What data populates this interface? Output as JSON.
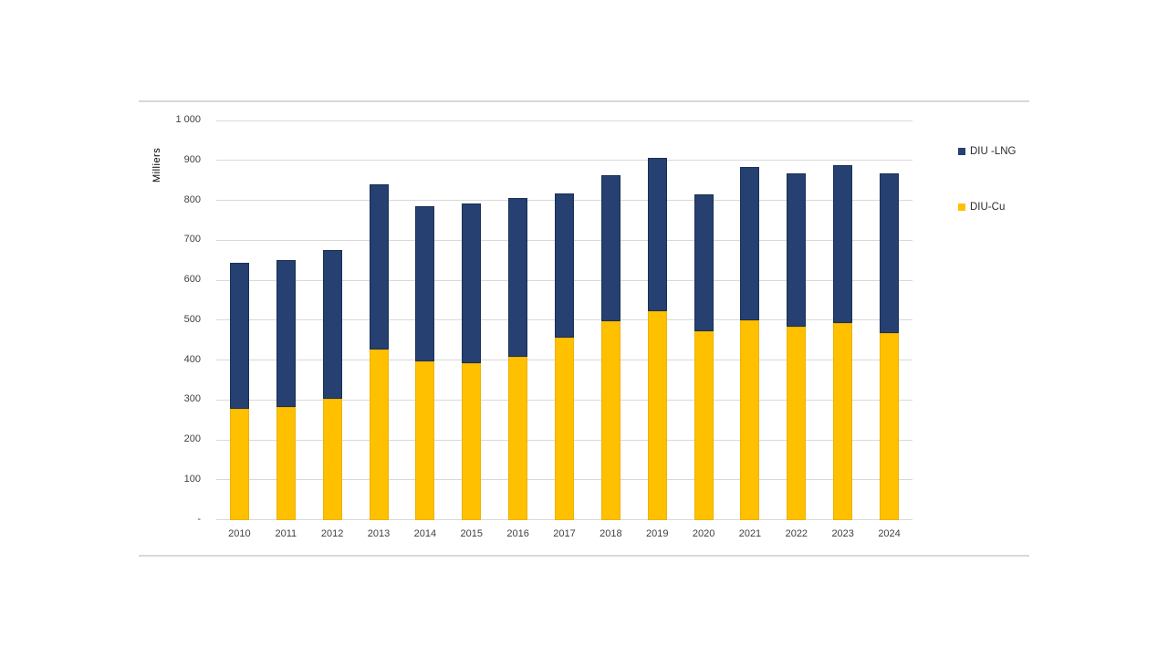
{
  "chart_data": {
    "type": "bar",
    "stacked": true,
    "title": "",
    "ylabel": "Milliers",
    "xlabel": "",
    "ylim": [
      0,
      1000
    ],
    "ytick_step": 100,
    "ytick_labels": [
      "-",
      "100",
      "200",
      "300",
      "400",
      "500",
      "600",
      "700",
      "800",
      "900",
      "1 000"
    ],
    "categories": [
      "2010",
      "2011",
      "2012",
      "2013",
      "2014",
      "2015",
      "2016",
      "2017",
      "2018",
      "2019",
      "2020",
      "2021",
      "2022",
      "2023",
      "2024"
    ],
    "series": [
      {
        "name": "DIU -LNG",
        "color": "#254071",
        "border_color": "#1b3055",
        "values": [
          365,
          368,
          373,
          415,
          389,
          400,
          399,
          362,
          367,
          384,
          344,
          384,
          385,
          396,
          400
        ]
      },
      {
        "name": "DIU-Cu",
        "color": "#FFC000",
        "border_color": "#edb100",
        "values": [
          278,
          282,
          303,
          426,
          396,
          392,
          407,
          455,
          497,
          522,
          472,
          500,
          483,
          492,
          468
        ]
      }
    ],
    "grid": true,
    "grid_color": "#d9d9d9",
    "axis_text_color": "#404040",
    "frame_color": "#d8d8d8",
    "legend_position": "right"
  }
}
